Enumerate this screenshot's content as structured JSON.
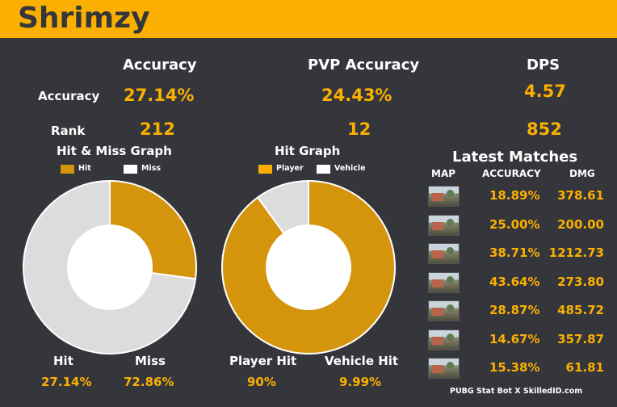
{
  "player_name": "Shrimzy",
  "stats": {
    "col_accuracy": "Accuracy",
    "col_pvp": "PVP Accuracy",
    "col_dps": "DPS",
    "row_accuracy_label": "Accuracy",
    "row_rank_label": "Rank",
    "accuracy_value": "27.14%",
    "pvp_value": "24.43%",
    "dps_value": "4.57",
    "accuracy_rank": "212",
    "pvp_rank": "12",
    "dps_rank": "852"
  },
  "hitmiss": {
    "title": "Hit & Miss Graph",
    "legend_hit": "Hit",
    "legend_miss": "Miss",
    "hit_label": "Hit",
    "miss_label": "Miss",
    "hit_pct": "27.14%",
    "miss_pct": "72.86%"
  },
  "hitgraph": {
    "title": "Hit  Graph",
    "legend_player": "Player",
    "legend_vehicle": "Vehicle",
    "player_label": "Player Hit",
    "vehicle_label": "Vehicle Hit",
    "player_pct": "90%",
    "vehicle_pct": "9.99%"
  },
  "colors": {
    "accent": "#fbb001",
    "slice_gold": "#d4950c",
    "slice_white": "#dcdcdc",
    "background": "#34363b"
  },
  "matches": {
    "title": "Latest Matches",
    "col_map": "MAP",
    "col_accuracy": "ACCURACY",
    "col_dmg": "DMG",
    "rows": [
      {
        "accuracy": "18.89%",
        "dmg": "378.61"
      },
      {
        "accuracy": "25.00%",
        "dmg": "200.00"
      },
      {
        "accuracy": "38.71%",
        "dmg": "1212.73"
      },
      {
        "accuracy": "43.64%",
        "dmg": "273.80"
      },
      {
        "accuracy": "28.87%",
        "dmg": "485.72"
      },
      {
        "accuracy": "14.67%",
        "dmg": "357.87"
      },
      {
        "accuracy": "15.38%",
        "dmg": "61.81"
      }
    ]
  },
  "footer": "PUBG Stat Bot X SkilledID.com",
  "chart_data": [
    {
      "type": "pie",
      "title": "Hit & Miss Graph",
      "categories": [
        "Hit",
        "Miss"
      ],
      "values": [
        27.14,
        72.86
      ],
      "legend": "top"
    },
    {
      "type": "pie",
      "title": "Hit  Graph",
      "categories": [
        "Player",
        "Vehicle"
      ],
      "values": [
        90,
        9.99
      ],
      "legend": "top"
    }
  ]
}
